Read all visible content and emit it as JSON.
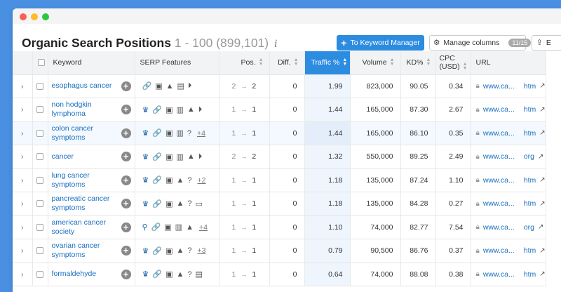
{
  "header": {
    "title": "Organic Search Positions",
    "range": "1 - 100 (899,101)",
    "info_glyph": "i",
    "keyword_manager_label": "To Keyword Manager",
    "manage_columns_label": "Manage columns",
    "manage_columns_badge": "11/15",
    "export_label": "E"
  },
  "columns": {
    "keyword": "Keyword",
    "serp": "SERP Features",
    "pos": "Pos.",
    "diff": "Diff.",
    "traffic": "Traffic %",
    "volume": "Volume",
    "kd": "KD%",
    "cpc": "CPC\n(USD)",
    "url": "URL"
  },
  "colors": {
    "accent": "#2c8ce0",
    "link": "#1a6fbf",
    "background": "#4a90e2"
  },
  "rows": [
    {
      "keyword": "esophagus cancer",
      "serp_icons": [
        "link-icon",
        "knowledge-icon",
        "graduation-icon",
        "image-icon",
        "video-icon"
      ],
      "more": "",
      "prev": "2",
      "cur": "2",
      "diff": "0",
      "traffic": "1.99",
      "volume": "823,000",
      "kd": "90.05",
      "cpc": "0.34",
      "url": "www.ca...",
      "url_tail": "htm"
    },
    {
      "keyword": "non hodgkin lymphoma",
      "serp_icons": [
        "crown-icon",
        "link-icon",
        "knowledge-icon",
        "article-icon",
        "graduation-icon",
        "video-icon"
      ],
      "more": "",
      "prev": "1",
      "cur": "1",
      "diff": "0",
      "traffic": "1.44",
      "volume": "165,000",
      "kd": "87.30",
      "cpc": "2.67",
      "url": "www.ca...",
      "url_tail": "htm"
    },
    {
      "keyword": "colon cancer symptoms",
      "serp_icons": [
        "crown-icon",
        "link-icon",
        "knowledge-icon",
        "article-icon",
        "question-icon"
      ],
      "more": "+4",
      "prev": "1",
      "cur": "1",
      "diff": "0",
      "traffic": "1.44",
      "volume": "165,000",
      "kd": "86.10",
      "cpc": "0.35",
      "url": "www.ca...",
      "url_tail": "htm"
    },
    {
      "keyword": "cancer",
      "serp_icons": [
        "crown-icon",
        "link-icon",
        "knowledge-icon",
        "article-icon",
        "graduation-icon",
        "video-icon"
      ],
      "more": "",
      "prev": "2",
      "cur": "2",
      "diff": "0",
      "traffic": "1.32",
      "volume": "550,000",
      "kd": "89.25",
      "cpc": "2.49",
      "url": "www.ca...",
      "url_tail": "org"
    },
    {
      "keyword": "lung cancer symptoms",
      "serp_icons": [
        "crown-icon",
        "link-icon",
        "knowledge-icon",
        "graduation-icon",
        "question-icon"
      ],
      "more": "+2",
      "prev": "1",
      "cur": "1",
      "diff": "0",
      "traffic": "1.18",
      "volume": "135,000",
      "kd": "87.24",
      "cpc": "1.10",
      "url": "www.ca...",
      "url_tail": "htm"
    },
    {
      "keyword": "pancreatic cancer symptoms",
      "serp_icons": [
        "crown-icon",
        "link-icon",
        "knowledge-icon",
        "graduation-icon",
        "question-icon",
        "card-icon"
      ],
      "more": "",
      "prev": "1",
      "cur": "1",
      "diff": "0",
      "traffic": "1.18",
      "volume": "135,000",
      "kd": "84.28",
      "cpc": "0.27",
      "url": "www.ca...",
      "url_tail": "htm"
    },
    {
      "keyword": "american cancer society",
      "serp_icons": [
        "pin-icon",
        "link-icon",
        "knowledge-icon",
        "article-icon",
        "graduation-icon"
      ],
      "more": "+4",
      "prev": "1",
      "cur": "1",
      "diff": "0",
      "traffic": "1.10",
      "volume": "74,000",
      "kd": "82.77",
      "cpc": "7.54",
      "url": "www.ca...",
      "url_tail": "org"
    },
    {
      "keyword": "ovarian cancer symptoms",
      "serp_icons": [
        "crown-icon",
        "link-icon",
        "knowledge-icon",
        "graduation-icon",
        "question-icon"
      ],
      "more": "+3",
      "prev": "1",
      "cur": "1",
      "diff": "0",
      "traffic": "0.79",
      "volume": "90,500",
      "kd": "86.76",
      "cpc": "0.37",
      "url": "www.ca...",
      "url_tail": "htm"
    },
    {
      "keyword": "formaldehyde",
      "serp_icons": [
        "crown-icon",
        "link-icon",
        "knowledge-icon",
        "graduation-icon",
        "question-icon",
        "image-icon"
      ],
      "more": "",
      "prev": "1",
      "cur": "1",
      "diff": "0",
      "traffic": "0.64",
      "volume": "74,000",
      "kd": "88.08",
      "cpc": "0.38",
      "url": "www.ca...",
      "url_tail": "htm"
    }
  ]
}
